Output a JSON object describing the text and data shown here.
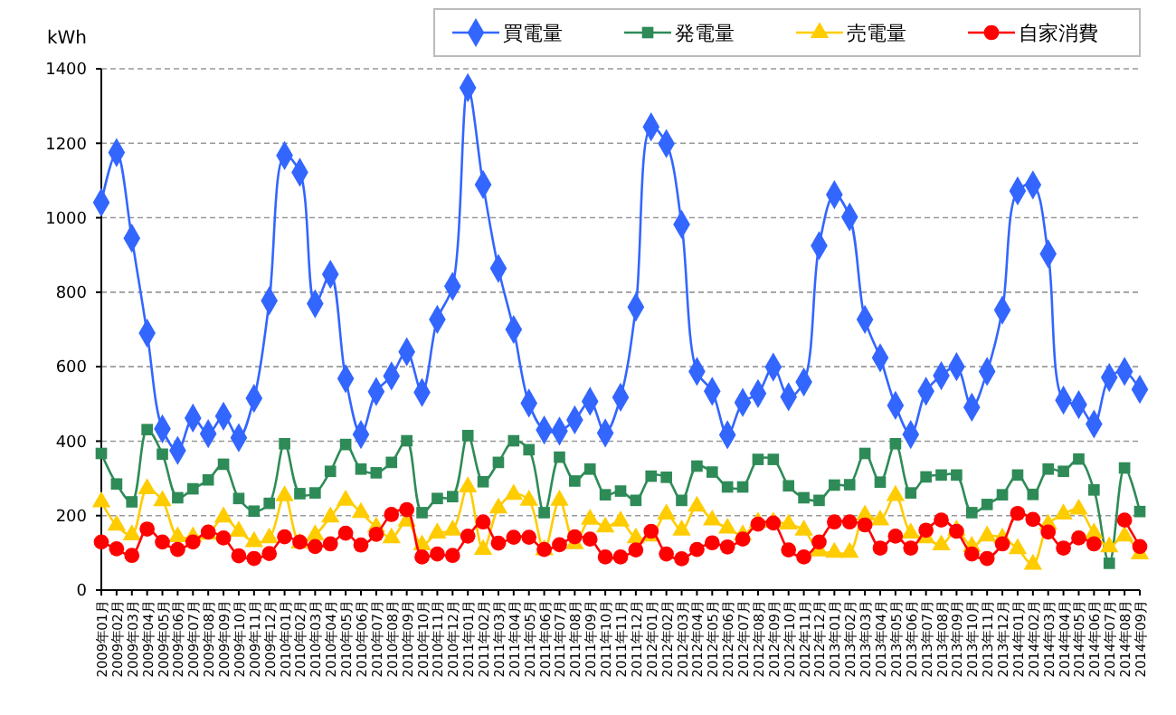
{
  "chart_data": {
    "type": "line",
    "ylabel": "kWh",
    "categories": [
      "2009年01月",
      "2009年02月",
      "2009年03月",
      "2009年04月",
      "2009年05月",
      "2009年06月",
      "2009年07月",
      "2009年08月",
      "2009年09月",
      "2009年10月",
      "2009年11月",
      "2009年12月",
      "2010年01月",
      "2010年02月",
      "2010年03月",
      "2010年04月",
      "2010年05月",
      "2010年06月",
      "2010年07月",
      "2010年08月",
      "2010年09月",
      "2010年10月",
      "2010年11月",
      "2010年12月",
      "2011年01月",
      "2011年02月",
      "2011年03月",
      "2011年04月",
      "2011年05月",
      "2011年06月",
      "2011年07月",
      "2011年08月",
      "2011年09月",
      "2011年10月",
      "2011年11月",
      "2011年12月",
      "2012年01月",
      "2012年02月",
      "2012年03月",
      "2012年04月",
      "2012年05月",
      "2012年06月",
      "2012年07月",
      "2012年08月",
      "2012年09月",
      "2012年10月",
      "2012年11月",
      "2012年12月",
      "2013年01月",
      "2013年02月",
      "2013年03月",
      "2013年04月",
      "2013年05月",
      "2013年06月",
      "2013年07月",
      "2013年08月",
      "2013年09月",
      "2013年10月",
      "2013年11月",
      "2013年12月",
      "2014年01月",
      "2014年02月",
      "2014年03月",
      "2014年04月",
      "2014年05月",
      "2014年06月",
      "2014年07月",
      "2014年08月",
      "2014年09月"
    ],
    "series": [
      {
        "name": "買電量",
        "color": "#3366ff",
        "marker": "diamond",
        "values": [
          1041,
          1175,
          945,
          690,
          433,
          375,
          462,
          420,
          467,
          409,
          515,
          777,
          1167,
          1122,
          769,
          848,
          568,
          418,
          533,
          575,
          640,
          531,
          727,
          816,
          1349,
          1089,
          864,
          700,
          502,
          430,
          427,
          457,
          507,
          422,
          518,
          760,
          1244,
          1199,
          982,
          587,
          534,
          417,
          504,
          528,
          599,
          519,
          559,
          925,
          1062,
          1002,
          727,
          624,
          496,
          418,
          534,
          576,
          600,
          491,
          587,
          752,
          1072,
          1088,
          903,
          510,
          498,
          446,
          571,
          587,
          539
        ]
      },
      {
        "name": "発電量",
        "color": "#2e8b57",
        "marker": "square",
        "values": [
          367,
          285,
          237,
          431,
          365,
          248,
          272,
          296,
          338,
          246,
          212,
          233,
          393,
          259,
          261,
          319,
          391,
          325,
          315,
          343,
          401,
          208,
          246,
          251,
          415,
          291,
          343,
          401,
          377,
          208,
          357,
          293,
          325,
          256,
          266,
          241,
          306,
          303,
          241,
          333,
          317,
          277,
          277,
          351,
          351,
          280,
          248,
          241,
          282,
          283,
          367,
          290,
          393,
          261,
          304,
          309,
          309,
          208,
          230,
          256,
          309,
          257,
          325,
          319,
          352,
          269,
          72,
          328,
          211
        ]
      },
      {
        "name": "売電量",
        "color": "#ffcc00",
        "marker": "triangle",
        "values": [
          237,
          174,
          148,
          272,
          240,
          143,
          143,
          150,
          196,
          158,
          130,
          140,
          253,
          126,
          148,
          196,
          241,
          208,
          169,
          140,
          185,
          121,
          153,
          161,
          277,
          109,
          220,
          257,
          241,
          108,
          241,
          124,
          190,
          169,
          185,
          140,
          145,
          204,
          161,
          225,
          188,
          166,
          148,
          182,
          182,
          177,
          161,
          105,
          101,
          101,
          201,
          188,
          254,
          153,
          140,
          121,
          161,
          117,
          145,
          140,
          111,
          69,
          177,
          204,
          217,
          153,
          116,
          145,
          97
        ]
      },
      {
        "name": "自家消費",
        "color": "#ff0000",
        "marker": "circle",
        "values": [
          129,
          111,
          93,
          164,
          129,
          109,
          129,
          156,
          140,
          92,
          85,
          98,
          143,
          129,
          117,
          124,
          153,
          121,
          150,
          203,
          216,
          89,
          97,
          93,
          145,
          183,
          126,
          142,
          142,
          109,
          122,
          143,
          137,
          89,
          89,
          108,
          158,
          97,
          84,
          109,
          127,
          116,
          137,
          177,
          180,
          108,
          89,
          129,
          183,
          183,
          175,
          113,
          145,
          113,
          161,
          188,
          158,
          97,
          85,
          124,
          206,
          190,
          156,
          113,
          140,
          124,
          null,
          188,
          117
        ]
      }
    ],
    "ylim": [
      0,
      1400
    ],
    "yticks": [
      0,
      200,
      400,
      600,
      800,
      1000,
      1200,
      1400
    ],
    "grid": "y",
    "legend": "top right"
  }
}
